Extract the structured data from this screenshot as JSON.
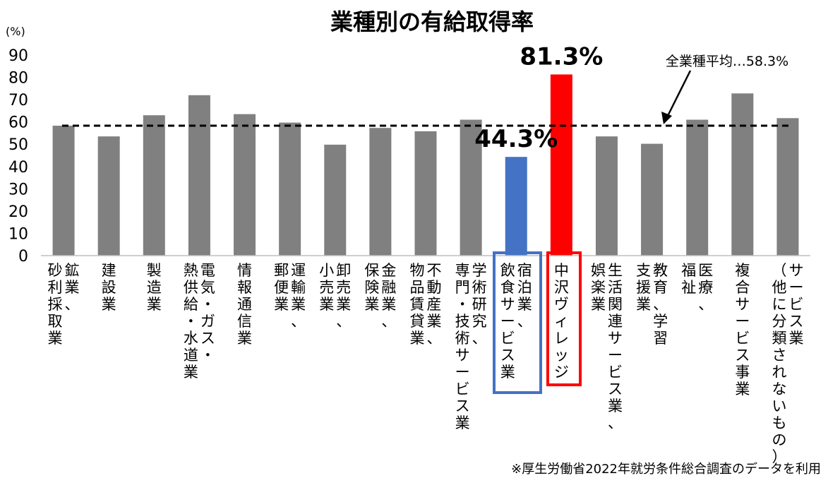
{
  "chart_data": {
    "type": "bar",
    "title": "業種別の有給取得率",
    "unit_label": "(%)",
    "ylim": [
      0,
      90
    ],
    "yticks": [
      0,
      10,
      20,
      30,
      40,
      50,
      60,
      70,
      80,
      90
    ],
    "grid": false,
    "categories": [
      [
        "鉱業、",
        "砂利採取業"
      ],
      [
        "建設業"
      ],
      [
        "製造業"
      ],
      [
        "電気・ガス・",
        "熱供給・水道業"
      ],
      [
        "情報通信業"
      ],
      [
        "運輸業、",
        "郵便業"
      ],
      [
        "卸売業、",
        "小売業"
      ],
      [
        "金融業、",
        "保険業"
      ],
      [
        "不動産業、",
        "物品賃貸業"
      ],
      [
        "学術研究、",
        "専門・技術サービス業"
      ],
      [
        "宿泊業、",
        "飲食サービス業"
      ],
      [
        "中沢ヴィレッジ"
      ],
      [
        "生活関連サービス業、",
        "娯楽業"
      ],
      [
        "教育、学習",
        "支援業"
      ],
      [
        "医療、",
        "福祉"
      ],
      [
        "複合サービス事業"
      ],
      [
        "サービス業",
        "（他に分類されないもの）"
      ]
    ],
    "values": [
      58.3,
      53.5,
      63,
      72,
      63.5,
      59.7,
      49.8,
      57.3,
      55.8,
      61,
      44.3,
      81.3,
      53.5,
      50.2,
      61,
      72.8,
      61.7
    ],
    "bar_colors": [
      "#808080",
      "#808080",
      "#808080",
      "#808080",
      "#808080",
      "#808080",
      "#808080",
      "#808080",
      "#808080",
      "#808080",
      "#4472C4",
      "#FF0000",
      "#808080",
      "#808080",
      "#808080",
      "#808080",
      "#808080"
    ],
    "highlight_box_colors": {
      "10": "#4472C4",
      "11": "#FF0000"
    },
    "data_labels": {
      "10": "44.3%",
      "11": "81.3%"
    },
    "reference_line": {
      "value": 58.3,
      "label": "全業種平均…58.3%",
      "style": "dashed",
      "color": "#000000"
    },
    "footnote": "※厚生労働省2022年就労条件総合調査のデータを利用"
  }
}
